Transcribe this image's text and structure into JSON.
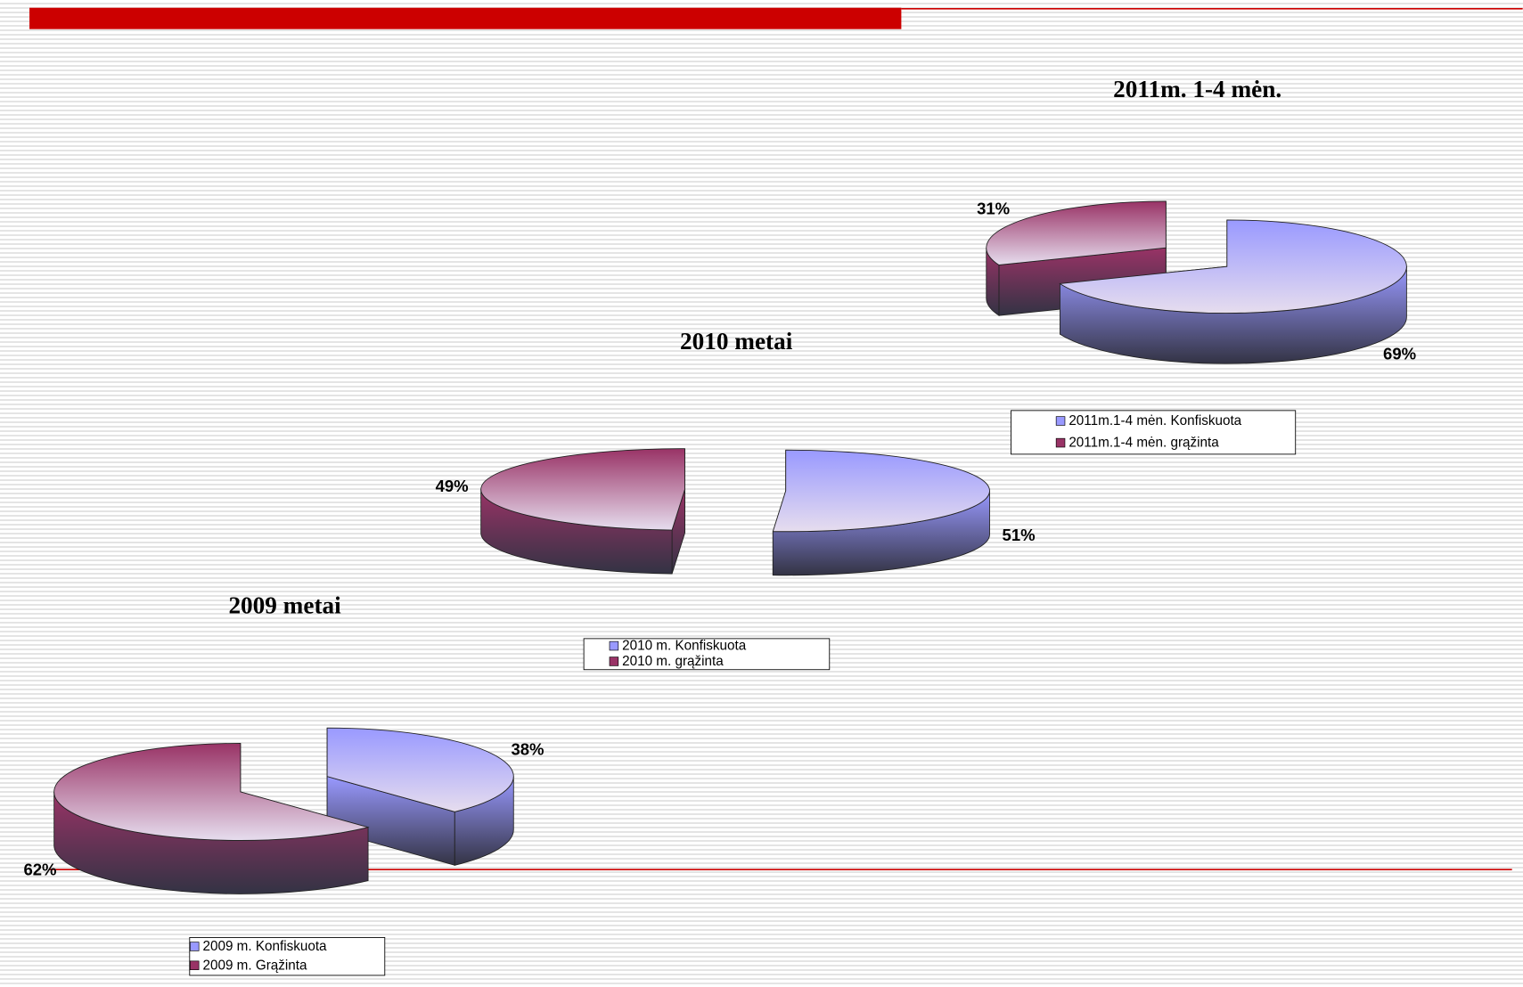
{
  "chart_data": [
    {
      "type": "pie",
      "title": "2011m. 1-4 mėn.",
      "categories": [
        "2011m.1-4 mėn. Konfiskuota",
        "2011m.1-4 mėn. grąžinta"
      ],
      "values": [
        69,
        31
      ],
      "value_labels": [
        "69%",
        "31%"
      ],
      "colors": [
        "#9999ff",
        "#993366"
      ]
    },
    {
      "type": "pie",
      "title": "2010 metai",
      "categories": [
        "2010 m. Konfiskuota",
        "2010 m. grąžinta"
      ],
      "values": [
        51,
        49
      ],
      "value_labels": [
        "51%",
        "49%"
      ],
      "colors": [
        "#9999ff",
        "#993366"
      ]
    },
    {
      "type": "pie",
      "title": "2009 metai",
      "categories": [
        "2009 m. Konfiskuota",
        "2009 m. Grąžinta"
      ],
      "values": [
        38,
        62
      ],
      "value_labels": [
        "38%",
        "62%"
      ],
      "colors": [
        "#9999ff",
        "#993366"
      ]
    }
  ]
}
